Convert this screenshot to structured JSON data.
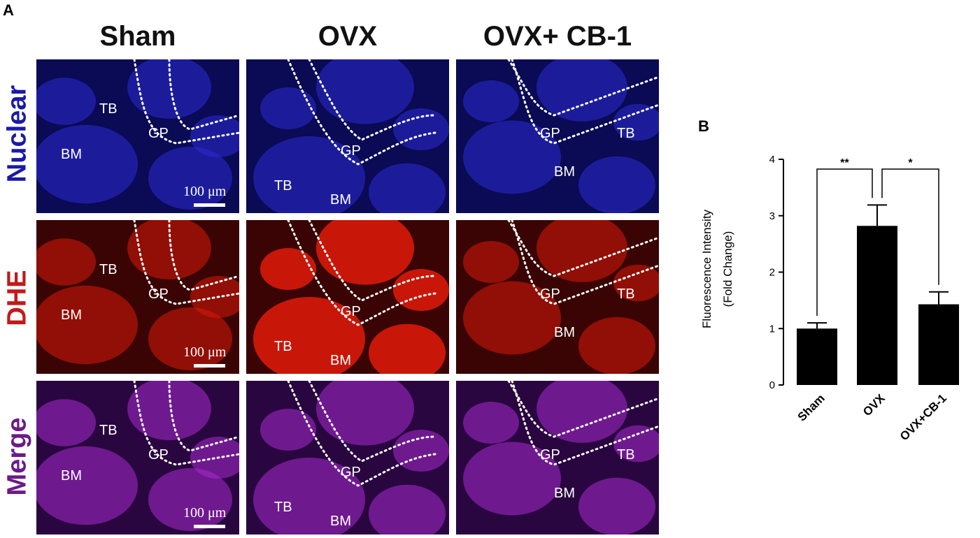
{
  "panel_a": {
    "letter": "A",
    "columns": [
      "Sham",
      "OVX",
      "OVX+ CB-1"
    ],
    "rows": [
      {
        "label": "Nuclear",
        "color": "#1a1aa8"
      },
      {
        "label": "DHE",
        "color": "#c21a1a"
      },
      {
        "label": "Merge",
        "color": "#6b1a8a"
      }
    ],
    "scale_bar": "100 μm",
    "region_labels": {
      "tb": "TB",
      "gp": "GP",
      "bm": "BM"
    }
  },
  "panel_b": {
    "letter": "B"
  },
  "chart_data": {
    "type": "bar",
    "categories": [
      "Sham",
      "OVX",
      "OVX+CB-1"
    ],
    "values": [
      1.0,
      2.82,
      1.43
    ],
    "errors": [
      0.1,
      0.37,
      0.22
    ],
    "ylabel_line1": "Fluorescence Intensity",
    "ylabel_line2": "(Fold Change)",
    "ylim": [
      0,
      4
    ],
    "yticks": [
      "0",
      "1",
      "2",
      "3",
      "4"
    ],
    "bar_color": "#000000",
    "significance": [
      {
        "from": 0,
        "to": 1,
        "label": "**"
      },
      {
        "from": 1,
        "to": 2,
        "label": "*"
      }
    ]
  }
}
